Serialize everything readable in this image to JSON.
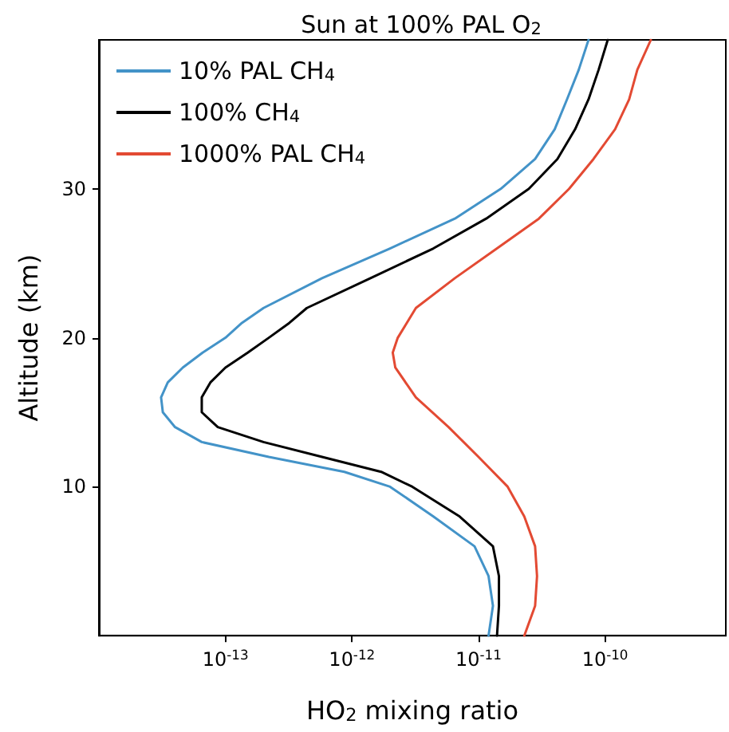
{
  "chart_data": {
    "type": "line",
    "title": "Sun at 100% PAL O$_{2}$",
    "xlabel": "HO$_{2}$ mixing ratio",
    "ylabel": "Altitude (km)",
    "log": "x",
    "xlim": [
      1e-14,
      9e-10
    ],
    "xticks": [
      {
        "value": 1e-13,
        "label": "10$^{-13}$"
      },
      {
        "value": 1e-12,
        "label": "10$^{-12}$"
      },
      {
        "value": 1e-11,
        "label": "10$^{-11}$"
      },
      {
        "value": 1e-10,
        "label": "10$^{-10}$"
      }
    ],
    "ylim": [
      0,
      40
    ],
    "yticks": [
      10,
      20,
      30
    ],
    "grid": false,
    "legend": "top left",
    "marker": "none",
    "line_style": "solid",
    "series": [
      {
        "name": "10% PAL CH$_{4}$",
        "color": "#4393c8",
        "x": [
          1.2e-11,
          1.3e-11,
          1.2e-11,
          9.3e-12,
          4.4e-12,
          2e-12,
          8.7e-13,
          2.2e-13,
          6.5e-14,
          4e-14,
          3.2e-14,
          3.1e-14,
          3.5e-14,
          4.6e-14,
          6.6e-14,
          1e-13,
          1.35e-13,
          2e-13,
          5.8e-13,
          2e-12,
          6.5e-12,
          1.5e-11,
          2.8e-11,
          4e-11,
          5e-11,
          6.2e-11,
          7.4e-11
        ],
        "values": [
          0,
          2,
          4,
          6,
          8,
          10,
          11,
          12,
          13,
          14,
          15,
          16,
          17,
          18,
          19,
          20,
          21,
          22,
          24,
          26,
          28,
          30,
          32,
          34,
          36,
          38,
          40
        ]
      },
      {
        "name": "100% CH$_{4}$",
        "color": "#000000",
        "x": [
          1.4e-11,
          1.45e-11,
          1.45e-11,
          1.3e-11,
          7.1e-12,
          3e-12,
          1.7e-12,
          5.8e-13,
          2e-13,
          8.7e-14,
          6.5e-14,
          6.5e-14,
          7.6e-14,
          1e-13,
          1.5e-13,
          2.2e-13,
          3.2e-13,
          4.4e-13,
          1.4e-12,
          4.4e-12,
          1.15e-11,
          2.5e-11,
          4.2e-11,
          5.8e-11,
          7.4e-11,
          8.9e-11,
          1.05e-10
        ],
        "values": [
          0,
          2,
          4,
          6,
          8,
          10,
          11,
          12,
          13,
          14,
          15,
          16,
          17,
          18,
          19,
          20,
          21,
          22,
          24,
          26,
          28,
          30,
          32,
          34,
          36,
          38,
          40
        ]
      },
      {
        "name": "1000% PAL CH$_{4}$",
        "color": "#e34a33",
        "x": [
          2.3e-11,
          2.8e-11,
          2.9e-11,
          2.8e-11,
          2.3e-11,
          1.7e-11,
          1e-11,
          5.8e-12,
          3.2e-12,
          2.2e-12,
          2.1e-12,
          2.3e-12,
          3.2e-12,
          6.5e-12,
          1.4e-11,
          3e-11,
          5.2e-11,
          8.1e-11,
          1.2e-10,
          1.55e-10,
          1.8e-10,
          2.3e-10
        ],
        "values": [
          0,
          2,
          4,
          6,
          8,
          10,
          12,
          14,
          16,
          18,
          19,
          20,
          22,
          24,
          26,
          28,
          30,
          32,
          34,
          36,
          38,
          40
        ]
      }
    ]
  }
}
